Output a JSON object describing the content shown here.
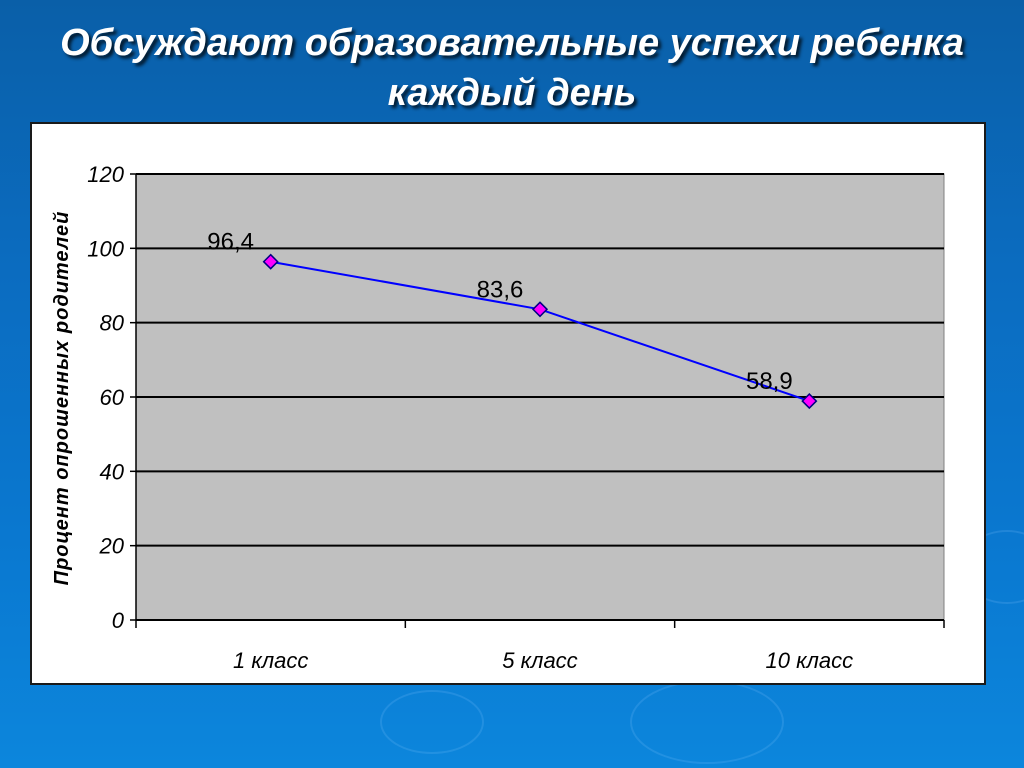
{
  "slide": {
    "title_line1": "Обсуждают образовательные успехи ребенка",
    "title_line2": "каждый день"
  },
  "colors": {
    "background": "#0a6cc0",
    "plot_area": "#c0c0c0",
    "gridline": "#000000",
    "series_line": "#0000ff",
    "marker_fill": "#ff00ff",
    "marker_stroke": "#000080"
  },
  "chart_data": {
    "type": "line",
    "categories": [
      "1 класс",
      "5 класс",
      "10 класс"
    ],
    "series": [
      {
        "values": [
          96.4,
          83.6,
          58.9
        ],
        "labels": [
          "96,4",
          "83,6",
          "58,9"
        ]
      }
    ],
    "ylabel": "Процент опрошенных родителей",
    "xlabel": "",
    "ylim": [
      0,
      120
    ],
    "yticks": [
      0,
      20,
      40,
      60,
      80,
      100,
      120
    ],
    "grid": true,
    "legend": "none"
  }
}
